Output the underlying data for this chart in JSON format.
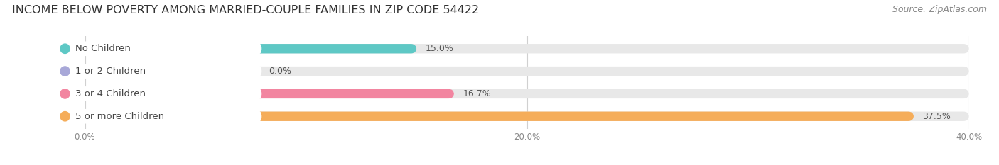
{
  "title": "INCOME BELOW POVERTY AMONG MARRIED-COUPLE FAMILIES IN ZIP CODE 54422",
  "source": "Source: ZipAtlas.com",
  "categories": [
    "No Children",
    "1 or 2 Children",
    "3 or 4 Children",
    "5 or more Children"
  ],
  "values": [
    15.0,
    0.0,
    16.7,
    37.5
  ],
  "bar_colors": [
    "#5ec8c5",
    "#a8a8d8",
    "#f285a0",
    "#f5ad5a"
  ],
  "xlim": [
    0,
    40
  ],
  "xticks": [
    0,
    20,
    40
  ],
  "xtick_labels": [
    "0.0%",
    "20.0%",
    "40.0%"
  ],
  "background_color": "#ffffff",
  "bar_background": "#e8e8e8",
  "title_fontsize": 11.5,
  "source_fontsize": 9,
  "label_fontsize": 9.5,
  "value_fontsize": 9
}
